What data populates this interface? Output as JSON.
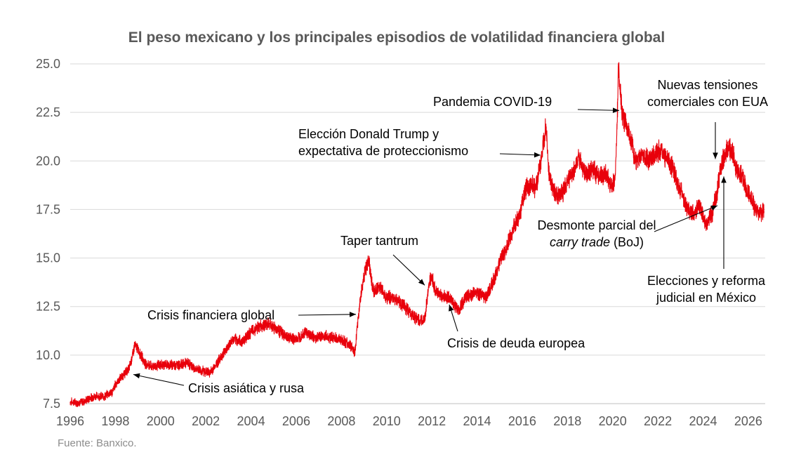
{
  "chart_data": {
    "type": "line",
    "title": "El peso mexicano y los principales episodios de volatilidad financiera global",
    "source": "Fuente: Banxico.",
    "xlabel": "",
    "ylabel": "",
    "xlim": [
      1996,
      2026.75
    ],
    "ylim": [
      7.5,
      25.0
    ],
    "x_ticks": [
      1996,
      1998,
      2000,
      2002,
      2004,
      2006,
      2008,
      2010,
      2012,
      2014,
      2016,
      2018,
      2020,
      2022,
      2024,
      2026
    ],
    "x_tick_labels": [
      "1996",
      "1998",
      "2000",
      "2002",
      "2004",
      "2006",
      "2008",
      "2010",
      "2012",
      "2014",
      "2016",
      "2018",
      "2020",
      "2022",
      "2024",
      "2026"
    ],
    "y_ticks": [
      7.5,
      10.0,
      12.5,
      15.0,
      17.5,
      20.0,
      22.5,
      25.0
    ],
    "y_tick_labels": [
      "7.5",
      "10.0",
      "12.5",
      "15.0",
      "17.5",
      "20.0",
      "22.5",
      "25.0"
    ],
    "grid": "horizontal",
    "series": [
      {
        "color": "#e8000b",
        "x": [
          1996.0,
          1996.3,
          1996.6,
          1996.9,
          1997.2,
          1997.5,
          1997.8,
          1997.85,
          1998.0,
          1998.3,
          1998.6,
          1998.72,
          1998.85,
          1999.0,
          1999.3,
          1999.6,
          2000.0,
          2000.4,
          2000.8,
          2001.2,
          2001.5,
          2001.8,
          2002.2,
          2002.5,
          2002.9,
          2003.2,
          2003.6,
          2004.0,
          2004.4,
          2004.8,
          2005.2,
          2005.6,
          2006.0,
          2006.4,
          2006.8,
          2007.2,
          2007.6,
          2008.0,
          2008.4,
          2008.6,
          2008.75,
          2008.9,
          2009.0,
          2009.2,
          2009.4,
          2009.7,
          2010.0,
          2010.4,
          2010.8,
          2011.2,
          2011.5,
          2011.7,
          2011.9,
          2012.0,
          2012.2,
          2012.5,
          2012.8,
          2013.0,
          2013.2,
          2013.5,
          2013.8,
          2014.0,
          2014.4,
          2014.8,
          2015.0,
          2015.3,
          2015.6,
          2015.9,
          2016.1,
          2016.4,
          2016.6,
          2016.9,
          2017.05,
          2017.2,
          2017.5,
          2017.8,
          2018.0,
          2018.3,
          2018.5,
          2018.7,
          2018.9,
          2019.1,
          2019.4,
          2019.7,
          2020.0,
          2020.1,
          2020.2,
          2020.25,
          2020.3,
          2020.4,
          2020.6,
          2020.8,
          2021.0,
          2021.3,
          2021.6,
          2021.9,
          2022.1,
          2022.4,
          2022.7,
          2023.0,
          2023.3,
          2023.6,
          2023.8,
          2024.0,
          2024.2,
          2024.4,
          2024.6,
          2024.75,
          2024.9,
          2025.1,
          2025.3,
          2025.5,
          2025.7,
          2025.9,
          2026.1,
          2026.3,
          2026.5,
          2026.7
        ],
        "y": [
          7.6,
          7.55,
          7.6,
          7.8,
          7.9,
          7.85,
          8.1,
          8.05,
          8.5,
          8.9,
          9.3,
          9.8,
          10.5,
          10.3,
          9.6,
          9.4,
          9.5,
          9.5,
          9.5,
          9.6,
          9.3,
          9.2,
          9.1,
          9.6,
          10.3,
          10.8,
          10.7,
          11.2,
          11.5,
          11.6,
          11.3,
          10.9,
          10.8,
          11.2,
          10.9,
          11.0,
          10.9,
          10.8,
          10.5,
          10.1,
          12.0,
          13.5,
          14.0,
          15.0,
          13.3,
          13.5,
          13.0,
          12.9,
          12.5,
          12.0,
          11.7,
          12.0,
          13.8,
          14.0,
          13.2,
          13.0,
          13.0,
          12.6,
          12.3,
          13.0,
          13.1,
          13.2,
          13.0,
          14.0,
          14.8,
          15.5,
          16.5,
          17.2,
          18.5,
          18.8,
          18.6,
          20.5,
          21.9,
          19.0,
          18.2,
          18.3,
          19.0,
          19.5,
          20.2,
          19.5,
          19.3,
          19.6,
          19.2,
          19.3,
          18.7,
          19.0,
          22.0,
          24.9,
          24.2,
          22.6,
          21.8,
          21.2,
          20.0,
          20.3,
          20.1,
          20.4,
          20.5,
          20.2,
          19.5,
          18.5,
          17.5,
          17.2,
          17.8,
          17.1,
          16.8,
          17.3,
          18.2,
          19.4,
          20.1,
          20.7,
          20.4,
          19.6,
          19.3,
          18.6,
          18.1,
          17.6,
          17.3,
          17.4
        ]
      }
    ],
    "annotations": [
      {
        "id": "asiatica",
        "lines": [
          [
            {
              "t": "Crisis asiática y rusa"
            }
          ]
        ],
        "x": 1998.8,
        "y": 9.0
      },
      {
        "id": "financiera",
        "lines": [
          [
            {
              "t": "Crisis financiera global"
            }
          ]
        ],
        "x": 2008.6,
        "y": 12.1
      },
      {
        "id": "taper",
        "lines": [
          [
            {
              "t": "Taper tantrum"
            }
          ]
        ],
        "x": 2011.6,
        "y": 13.6
      },
      {
        "id": "europea",
        "lines": [
          [
            {
              "t": "Crisis de deuda europea"
            }
          ]
        ],
        "x": 2012.7,
        "y": 12.6
      },
      {
        "id": "trump",
        "lines": [
          [
            {
              "t": "Elección Donald Trump y"
            }
          ],
          [
            {
              "t": "expectativa de proteccionismo"
            }
          ]
        ],
        "x": 2016.9,
        "y": 20.3
      },
      {
        "id": "covid",
        "lines": [
          [
            {
              "t": "Pandemia COVID-19"
            }
          ]
        ],
        "x": 2020.1,
        "y": 22.6
      },
      {
        "id": "tensiones",
        "lines": [
          [
            {
              "t": "Nuevas tensiones"
            }
          ],
          [
            {
              "t": "comerciales con EUA"
            }
          ]
        ],
        "x": 2024.8,
        "y": 20.1
      },
      {
        "id": "carry",
        "lines": [
          [
            {
              "t": "Desmonte parcial del"
            }
          ],
          [
            {
              "t": "carry trade",
              "i": true
            },
            {
              "t": " (BoJ)"
            }
          ]
        ],
        "x": 2024.6,
        "y": 17.7
      },
      {
        "id": "elecciones",
        "lines": [
          [
            {
              "t": "Elecciones y reforma"
            }
          ],
          [
            {
              "t": "judicial en México"
            }
          ]
        ],
        "x": 2025.0,
        "y": 19.2
      }
    ]
  }
}
